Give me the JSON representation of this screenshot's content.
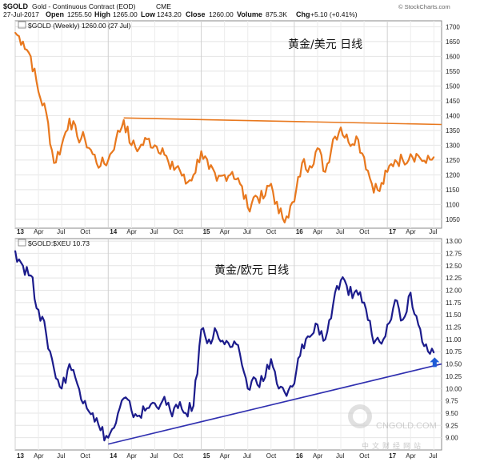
{
  "header": {
    "symbol": "$GOLD",
    "description": "Gold - Continuous Contract (EOD)",
    "exchange": "CME",
    "date": "27-Jul-2017",
    "open_label": "Open",
    "open": "1255.50",
    "high_label": "High",
    "high": "1265.00",
    "low_label": "Low",
    "low": "1243.20",
    "close_label": "Close",
    "close": "1260.00",
    "volume_label": "Volume",
    "volume": "875.3K",
    "chg_label": "Chg",
    "chg": "+5.10 (+0.41%)",
    "copyright": "© StockCharts.com"
  },
  "watermark": {
    "brand": "中文财经网站",
    "site": "CNGOLD.COM"
  },
  "chart_data": [
    {
      "type": "line",
      "legend": "$GOLD (Weekly) 1260.00 (27 Jul)",
      "annotation": "黄金/美元  日线",
      "color": "#e8781e",
      "trendline_color": "#e8781e",
      "x_tick_labels": [
        "13",
        "Apr",
        "Jul",
        "Oct",
        "14",
        "Apr",
        "Jul",
        "Oct",
        "15",
        "Apr",
        "Jul",
        "Oct",
        "16",
        "Apr",
        "Jul",
        "Oct",
        "17",
        "Apr",
        "Jul"
      ],
      "x_tick_dates": [
        "2013-01",
        "2013-04",
        "2013-07",
        "2013-10",
        "2014-01",
        "2014-04",
        "2014-07",
        "2014-10",
        "2015-01",
        "2015-04",
        "2015-07",
        "2015-10",
        "2016-01",
        "2016-04",
        "2016-07",
        "2016-10",
        "2017-01",
        "2017-04",
        "2017-07"
      ],
      "y_ticks": [
        "1050",
        "1100",
        "1150",
        "1200",
        "1250",
        "1300",
        "1350",
        "1400",
        "1450",
        "1500",
        "1550",
        "1600",
        "1650",
        "1700"
      ],
      "ylim": [
        1020,
        1720
      ],
      "points": [
        {
          "x": "2013-01",
          "y": 1680
        },
        {
          "x": "2013-02",
          "y": 1650
        },
        {
          "x": "2013-03",
          "y": 1600
        },
        {
          "x": "2013-04",
          "y": 1480
        },
        {
          "x": "2013-05",
          "y": 1410
        },
        {
          "x": "2013-06",
          "y": 1240
        },
        {
          "x": "2013-07",
          "y": 1300
        },
        {
          "x": "2013-08",
          "y": 1390
        },
        {
          "x": "2013-09",
          "y": 1330
        },
        {
          "x": "2013-10",
          "y": 1320
        },
        {
          "x": "2013-11",
          "y": 1270
        },
        {
          "x": "2013-12",
          "y": 1230
        },
        {
          "x": "2014-01",
          "y": 1250
        },
        {
          "x": "2014-02",
          "y": 1320
        },
        {
          "x": "2014-03",
          "y": 1385
        },
        {
          "x": "2014-04",
          "y": 1300
        },
        {
          "x": "2014-05",
          "y": 1290
        },
        {
          "x": "2014-06",
          "y": 1320
        },
        {
          "x": "2014-07",
          "y": 1300
        },
        {
          "x": "2014-08",
          "y": 1290
        },
        {
          "x": "2014-09",
          "y": 1220
        },
        {
          "x": "2014-10",
          "y": 1230
        },
        {
          "x": "2014-11",
          "y": 1170
        },
        {
          "x": "2014-12",
          "y": 1200
        },
        {
          "x": "2015-01",
          "y": 1280
        },
        {
          "x": "2015-02",
          "y": 1220
        },
        {
          "x": "2015-03",
          "y": 1180
        },
        {
          "x": "2015-04",
          "y": 1200
        },
        {
          "x": "2015-05",
          "y": 1210
        },
        {
          "x": "2015-06",
          "y": 1170
        },
        {
          "x": "2015-07",
          "y": 1090
        },
        {
          "x": "2015-08",
          "y": 1130
        },
        {
          "x": "2015-09",
          "y": 1120
        },
        {
          "x": "2015-10",
          "y": 1170
        },
        {
          "x": "2015-11",
          "y": 1070
        },
        {
          "x": "2015-12",
          "y": 1060
        },
        {
          "x": "2016-01",
          "y": 1110
        },
        {
          "x": "2016-02",
          "y": 1240
        },
        {
          "x": "2016-03",
          "y": 1230
        },
        {
          "x": "2016-04",
          "y": 1290
        },
        {
          "x": "2016-05",
          "y": 1210
        },
        {
          "x": "2016-06",
          "y": 1320
        },
        {
          "x": "2016-07",
          "y": 1360
        },
        {
          "x": "2016-08",
          "y": 1310
        },
        {
          "x": "2016-09",
          "y": 1330
        },
        {
          "x": "2016-10",
          "y": 1260
        },
        {
          "x": "2016-11",
          "y": 1170
        },
        {
          "x": "2016-12",
          "y": 1145
        },
        {
          "x": "2017-01",
          "y": 1210
        },
        {
          "x": "2017-02",
          "y": 1250
        },
        {
          "x": "2017-03",
          "y": 1250
        },
        {
          "x": "2017-04",
          "y": 1270
        },
        {
          "x": "2017-05",
          "y": 1265
        },
        {
          "x": "2017-06",
          "y": 1240
        },
        {
          "x": "2017-07",
          "y": 1260
        }
      ],
      "trendline": [
        {
          "x": "2014-03",
          "y": 1392
        },
        {
          "x": "2017-07",
          "y": 1370
        }
      ]
    },
    {
      "type": "line",
      "legend": "$GOLD:$XEU 10.73",
      "annotation": "黄金/欧元  日线",
      "color": "#1c1c8c",
      "trendline_color": "#3030b0",
      "marker_color": "#1e5bd6",
      "x_tick_labels": [
        "13",
        "Apr",
        "Jul",
        "Oct",
        "14",
        "Apr",
        "Jul",
        "Oct",
        "15",
        "Apr",
        "Jul",
        "Oct",
        "16",
        "Apr",
        "Jul",
        "Oct",
        "17",
        "Apr",
        "Jul"
      ],
      "x_tick_dates": [
        "2013-01",
        "2013-04",
        "2013-07",
        "2013-10",
        "2014-01",
        "2014-04",
        "2014-07",
        "2014-10",
        "2015-01",
        "2015-04",
        "2015-07",
        "2015-10",
        "2016-01",
        "2016-04",
        "2016-07",
        "2016-10",
        "2017-01",
        "2017-04",
        "2017-07"
      ],
      "y_ticks": [
        "9.00",
        "9.25",
        "9.50",
        "9.75",
        "10.00",
        "10.25",
        "10.50",
        "10.75",
        "11.00",
        "11.25",
        "11.50",
        "11.75",
        "12.00",
        "12.25",
        "12.50",
        "12.75",
        "13.00"
      ],
      "ylim": [
        8.75,
        13.05
      ],
      "points": [
        {
          "x": "2013-01",
          "y": 12.8
        },
        {
          "x": "2013-02",
          "y": 12.5
        },
        {
          "x": "2013-03",
          "y": 12.3
        },
        {
          "x": "2013-04",
          "y": 11.6
        },
        {
          "x": "2013-05",
          "y": 11.1
        },
        {
          "x": "2013-06",
          "y": 10.4
        },
        {
          "x": "2013-07",
          "y": 10.0
        },
        {
          "x": "2013-08",
          "y": 10.5
        },
        {
          "x": "2013-09",
          "y": 10.1
        },
        {
          "x": "2013-10",
          "y": 9.75
        },
        {
          "x": "2013-11",
          "y": 9.5
        },
        {
          "x": "2013-12",
          "y": 9.15
        },
        {
          "x": "2014-01",
          "y": 9.0
        },
        {
          "x": "2014-02",
          "y": 9.3
        },
        {
          "x": "2014-03",
          "y": 9.8
        },
        {
          "x": "2014-04",
          "y": 9.55
        },
        {
          "x": "2014-05",
          "y": 9.45
        },
        {
          "x": "2014-06",
          "y": 9.6
        },
        {
          "x": "2014-07",
          "y": 9.7
        },
        {
          "x": "2014-08",
          "y": 9.75
        },
        {
          "x": "2014-09",
          "y": 9.55
        },
        {
          "x": "2014-10",
          "y": 9.6
        },
        {
          "x": "2014-11",
          "y": 9.5
        },
        {
          "x": "2014-12",
          "y": 9.65
        },
        {
          "x": "2015-01",
          "y": 11.2
        },
        {
          "x": "2015-02",
          "y": 11.0
        },
        {
          "x": "2015-03",
          "y": 11.15
        },
        {
          "x": "2015-04",
          "y": 10.9
        },
        {
          "x": "2015-05",
          "y": 10.85
        },
        {
          "x": "2015-06",
          "y": 10.7
        },
        {
          "x": "2015-07",
          "y": 10.0
        },
        {
          "x": "2015-08",
          "y": 10.2
        },
        {
          "x": "2015-09",
          "y": 10.15
        },
        {
          "x": "2015-10",
          "y": 10.6
        },
        {
          "x": "2015-11",
          "y": 10.0
        },
        {
          "x": "2015-12",
          "y": 9.85
        },
        {
          "x": "2016-01",
          "y": 10.1
        },
        {
          "x": "2016-02",
          "y": 10.9
        },
        {
          "x": "2016-03",
          "y": 11.05
        },
        {
          "x": "2016-04",
          "y": 11.3
        },
        {
          "x": "2016-05",
          "y": 11.0
        },
        {
          "x": "2016-06",
          "y": 11.7
        },
        {
          "x": "2016-07",
          "y": 12.2
        },
        {
          "x": "2016-08",
          "y": 11.9
        },
        {
          "x": "2016-09",
          "y": 12.0
        },
        {
          "x": "2016-10",
          "y": 11.75
        },
        {
          "x": "2016-11",
          "y": 11.1
        },
        {
          "x": "2016-12",
          "y": 10.95
        },
        {
          "x": "2017-01",
          "y": 11.3
        },
        {
          "x": "2017-02",
          "y": 11.8
        },
        {
          "x": "2017-03",
          "y": 11.4
        },
        {
          "x": "2017-04",
          "y": 11.95
        },
        {
          "x": "2017-05",
          "y": 11.3
        },
        {
          "x": "2017-06",
          "y": 10.9
        },
        {
          "x": "2017-07",
          "y": 10.73
        }
      ],
      "trendline": [
        {
          "x": "2014-01",
          "y": 8.87
        },
        {
          "x": "2017-07",
          "y": 10.5
        }
      ]
    }
  ]
}
